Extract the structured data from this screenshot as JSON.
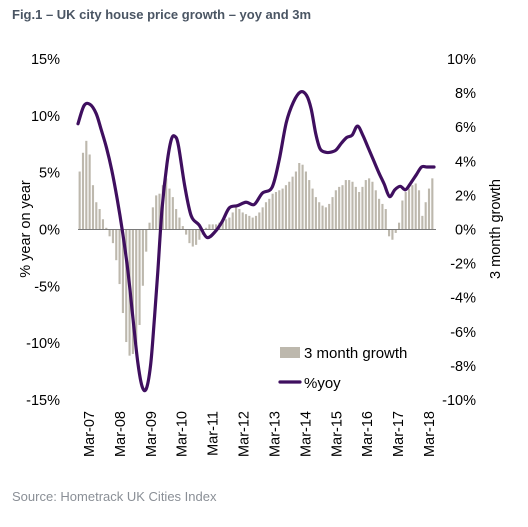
{
  "figure": {
    "title": "Fig.1 – UK city house price growth – yoy and 3m",
    "source": "Source: Hometrack UK Cities Index"
  },
  "chart_data": {
    "type": "bar+line",
    "title": "Fig.1 – UK city house price growth – yoy and 3m",
    "ylabel_left": "% year on year",
    "ylabel_right": "3 month growth",
    "ylim_left": [
      -15,
      15
    ],
    "ylim_right": [
      -10,
      10
    ],
    "yticks_left": [
      "15%",
      "10%",
      "5%",
      "0%",
      "-5%",
      "-10%",
      "-15%"
    ],
    "yticks_right": [
      "10%",
      "8%",
      "6%",
      "4%",
      "2%",
      "0%",
      "-2%",
      "-4%",
      "-6%",
      "-8%",
      "-10%"
    ],
    "xticks": [
      "Mar-07",
      "Mar-08",
      "Mar-09",
      "Mar-10",
      "Mar-11",
      "Mar-12",
      "Mar-13",
      "Mar-14",
      "Mar-15",
      "Mar-16",
      "Mar-17",
      "Mar-18"
    ],
    "legend": [
      "3 month growth",
      "%yoy"
    ],
    "legend_position": "bottom-right",
    "grid": false,
    "colors": {
      "bars": "#bdb8ad",
      "line": "#3f0f5f",
      "zero_line": "#7a7a7a"
    },
    "series": [
      {
        "name": "3 month growth",
        "axis": "right",
        "type": "bar",
        "values": [
          3.4,
          4.5,
          5.2,
          4.4,
          2.6,
          1.6,
          1.2,
          0.6,
          0.1,
          -0.4,
          -0.8,
          -1.8,
          -3.2,
          -4.9,
          -6.6,
          -7.4,
          -7.3,
          -6.7,
          -5.6,
          -3.3,
          -1.3,
          0.4,
          1.3,
          2.0,
          2.1,
          2.6,
          3.0,
          2.4,
          1.9,
          1.2,
          0.7,
          0.2,
          -0.3,
          -0.8,
          -1.0,
          -0.9,
          -0.6,
          -0.3,
          0.1,
          0.3,
          0.3,
          0.3,
          0.4,
          0.6,
          0.6,
          0.7,
          1.0,
          1.3,
          1.2,
          1.0,
          0.9,
          0.8,
          0.7,
          0.8,
          1.0,
          1.3,
          1.6,
          1.8,
          2.1,
          2.2,
          2.3,
          2.4,
          2.6,
          2.8,
          3.1,
          3.4,
          3.9,
          3.8,
          3.4,
          2.9,
          2.4,
          1.9,
          1.6,
          1.4,
          1.3,
          1.5,
          1.9,
          2.3,
          2.5,
          2.6,
          2.9,
          2.9,
          2.8,
          2.5,
          2.2,
          2.5,
          2.9,
          3.0,
          2.8,
          2.3,
          1.8,
          1.5,
          1.2,
          -0.4,
          -0.6,
          -0.2,
          0.4,
          1.7,
          2.2,
          2.4,
          2.6,
          2.7,
          2.3,
          0.8,
          1.6,
          2.4,
          3.0
        ]
      },
      {
        "name": "%yoy",
        "axis": "left",
        "type": "line",
        "x_frac": [
          0,
          0.017,
          0.034,
          0.051,
          0.065,
          0.08,
          0.095,
          0.11,
          0.125,
          0.14,
          0.155,
          0.168,
          0.18,
          0.192,
          0.204,
          0.214,
          0.224,
          0.236,
          0.25,
          0.262,
          0.272,
          0.282,
          0.3,
          0.318,
          0.34,
          0.362,
          0.385,
          0.405,
          0.425,
          0.448,
          0.472,
          0.495,
          0.518,
          0.545,
          0.565,
          0.585,
          0.605,
          0.625,
          0.642,
          0.655,
          0.668,
          0.68,
          0.695,
          0.71,
          0.725,
          0.74,
          0.755,
          0.77,
          0.785,
          0.8,
          0.815,
          0.83,
          0.845,
          0.86,
          0.875,
          0.89,
          0.905,
          0.92,
          0.935,
          0.95,
          0.965,
          0.98,
          1.0
        ],
        "values": [
          9.3,
          10.9,
          11.0,
          10.2,
          8.8,
          7.2,
          5.2,
          2.7,
          -0.2,
          -3.6,
          -8.0,
          -11.7,
          -13.8,
          -14.0,
          -11.9,
          -8.1,
          -3.8,
          1.8,
          5.8,
          7.9,
          8.2,
          7.4,
          3.8,
          1.2,
          0.4,
          -0.7,
          -0.2,
          0.7,
          1.9,
          2.1,
          2.4,
          2.2,
          3.2,
          3.7,
          6.1,
          9.4,
          11.2,
          12.1,
          11.8,
          10.6,
          8.4,
          7.1,
          6.8,
          6.8,
          7.0,
          7.6,
          8.1,
          8.3,
          9.1,
          8.3,
          7.2,
          6.1,
          5.0,
          4.0,
          2.9,
          3.5,
          3.8,
          3.5,
          4.1,
          4.8,
          5.5,
          5.5,
          5.5
        ]
      }
    ]
  }
}
